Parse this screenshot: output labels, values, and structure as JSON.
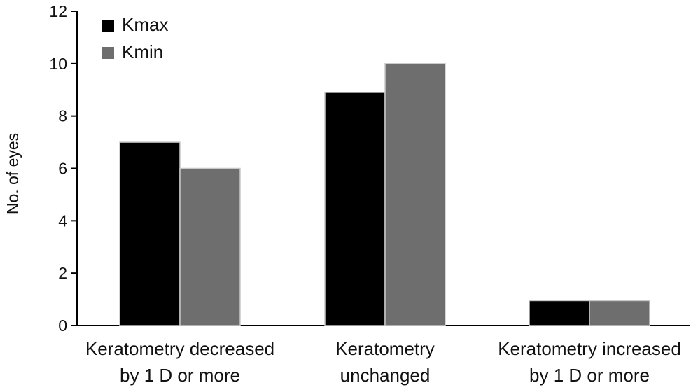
{
  "chart_data": {
    "type": "bar",
    "title": "",
    "xlabel": "",
    "ylabel": "No. of eyes",
    "ylim": [
      0,
      12
    ],
    "yticks": [
      0,
      2,
      4,
      6,
      8,
      10,
      12
    ],
    "grid": false,
    "legend_position": "top-left",
    "categories": [
      [
        "Keratometry decreased",
        "by 1 D or more"
      ],
      [
        "Keratometry",
        "unchanged"
      ],
      [
        "Keratometry increased",
        "by 1 D or more"
      ]
    ],
    "series": [
      {
        "name": "Kmax",
        "color": "#000000",
        "values": [
          7,
          8.9,
          0.95
        ]
      },
      {
        "name": "Kmin",
        "color": "#6e6e6e",
        "values": [
          6,
          10,
          0.95
        ]
      }
    ]
  }
}
